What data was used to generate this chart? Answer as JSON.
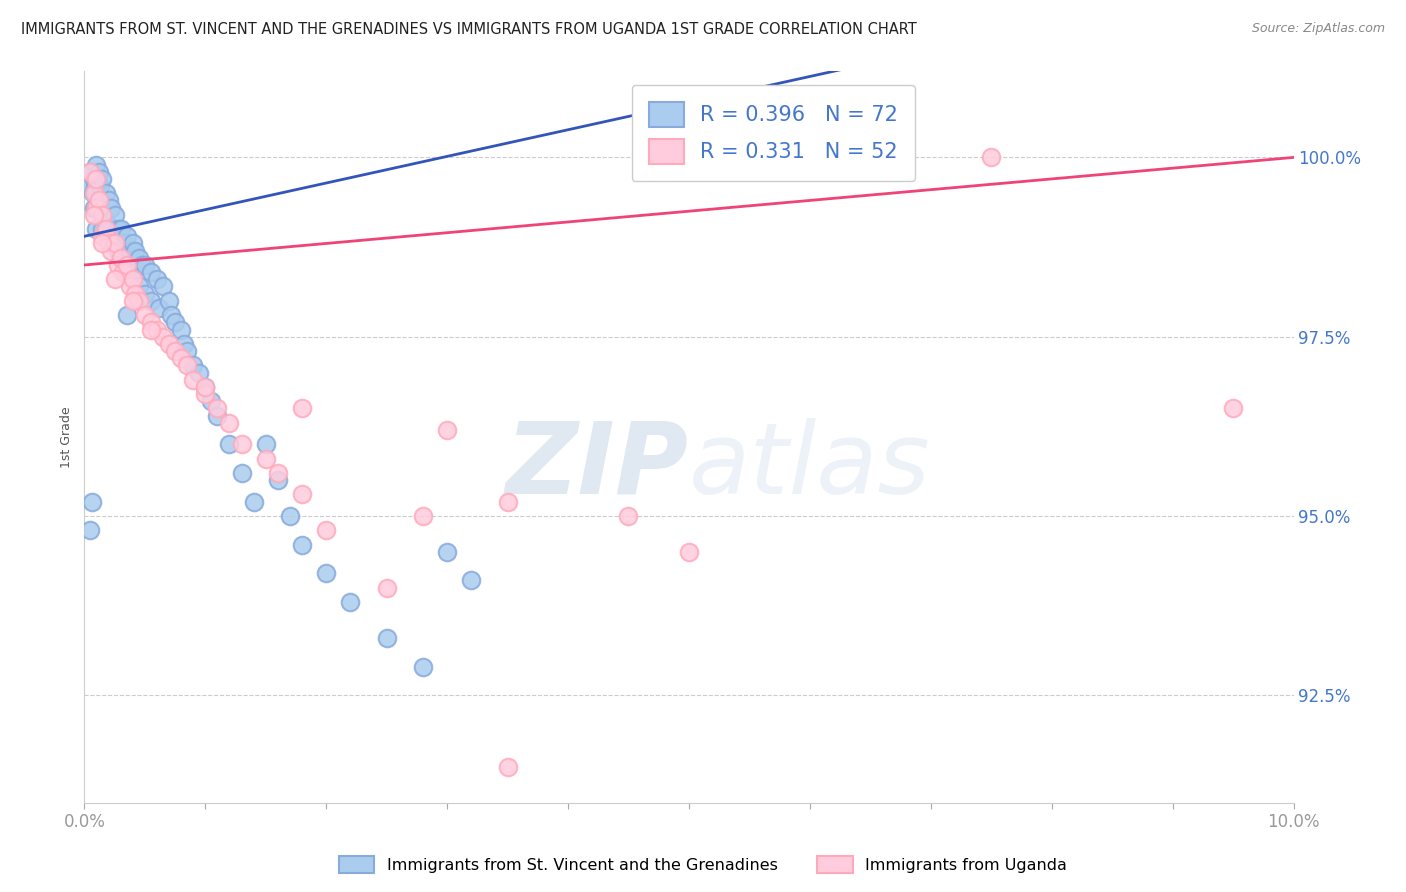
{
  "title": "IMMIGRANTS FROM ST. VINCENT AND THE GRENADINES VS IMMIGRANTS FROM UGANDA 1ST GRADE CORRELATION CHART",
  "source": "Source: ZipAtlas.com",
  "ylabel": "1st Grade",
  "xlim": [
    0.0,
    10.0
  ],
  "ylim": [
    91.0,
    101.2
  ],
  "ytick_vals": [
    92.5,
    95.0,
    97.5,
    100.0
  ],
  "ytick_labels": [
    "92.5%",
    "95.0%",
    "97.5%",
    "100.0%"
  ],
  "xtick_vals": [
    0.0,
    1.0,
    2.0,
    3.0,
    4.0,
    5.0,
    6.0,
    7.0,
    8.0,
    9.0,
    10.0
  ],
  "xtick_edge_labels": [
    "0.0%",
    "10.0%"
  ],
  "blue_color": "#88AADD",
  "pink_color": "#FFAABB",
  "blue_fill": "#AACCEE",
  "pink_fill": "#FFCCDD",
  "blue_line_color": "#3355BB",
  "pink_line_color": "#EE4477",
  "R_blue": 0.396,
  "N_blue": 72,
  "R_pink": 0.331,
  "N_pink": 52,
  "legend_label_blue": "Immigrants from St. Vincent and the Grenadines",
  "legend_label_pink": "Immigrants from Uganda",
  "watermark_zip": "ZIP",
  "watermark_atlas": "atlas",
  "background_color": "#ffffff",
  "grid_color": "#cccccc",
  "ytick_color": "#4477CC",
  "xtick_color": "#999999",
  "title_color": "#222222",
  "source_color": "#888888",
  "ylabel_color": "#555555",
  "spine_color": "#cccccc",
  "legend_edge_color": "#cccccc",
  "blue_x": [
    0.05,
    0.05,
    0.07,
    0.08,
    0.08,
    0.09,
    0.1,
    0.1,
    0.1,
    0.1,
    0.12,
    0.12,
    0.13,
    0.15,
    0.15,
    0.15,
    0.18,
    0.18,
    0.2,
    0.2,
    0.22,
    0.22,
    0.25,
    0.25,
    0.28,
    0.28,
    0.3,
    0.3,
    0.32,
    0.35,
    0.35,
    0.38,
    0.4,
    0.4,
    0.42,
    0.45,
    0.45,
    0.48,
    0.5,
    0.5,
    0.55,
    0.55,
    0.6,
    0.62,
    0.65,
    0.7,
    0.72,
    0.75,
    0.8,
    0.82,
    0.85,
    0.9,
    0.95,
    1.0,
    1.05,
    1.1,
    1.2,
    1.3,
    1.4,
    1.5,
    1.6,
    1.7,
    1.8,
    2.0,
    2.2,
    2.5,
    2.8,
    3.0,
    3.2,
    0.05,
    0.06,
    0.35
  ],
  "blue_y": [
    99.8,
    99.6,
    99.5,
    99.7,
    99.3,
    99.6,
    99.9,
    99.5,
    99.3,
    99.0,
    99.8,
    99.4,
    99.6,
    99.7,
    99.2,
    99.0,
    99.5,
    99.1,
    99.4,
    99.0,
    99.3,
    98.9,
    99.2,
    98.8,
    99.0,
    98.7,
    99.0,
    98.6,
    98.8,
    98.9,
    98.5,
    98.7,
    98.8,
    98.4,
    98.7,
    98.6,
    98.2,
    98.5,
    98.5,
    98.1,
    98.4,
    98.0,
    98.3,
    97.9,
    98.2,
    98.0,
    97.8,
    97.7,
    97.6,
    97.4,
    97.3,
    97.1,
    97.0,
    96.8,
    96.6,
    96.4,
    96.0,
    95.6,
    95.2,
    96.0,
    95.5,
    95.0,
    94.6,
    94.2,
    93.8,
    93.3,
    92.9,
    94.5,
    94.1,
    94.8,
    95.2,
    97.8
  ],
  "pink_x": [
    0.05,
    0.08,
    0.1,
    0.1,
    0.12,
    0.15,
    0.15,
    0.18,
    0.2,
    0.22,
    0.25,
    0.28,
    0.3,
    0.32,
    0.35,
    0.38,
    0.4,
    0.42,
    0.45,
    0.5,
    0.55,
    0.6,
    0.65,
    0.7,
    0.75,
    0.8,
    0.85,
    0.9,
    1.0,
    1.1,
    1.2,
    1.3,
    1.5,
    1.6,
    1.8,
    2.0,
    2.5,
    2.8,
    3.0,
    3.5,
    4.5,
    5.0,
    7.5,
    9.5,
    0.08,
    0.15,
    0.25,
    0.4,
    0.55,
    1.0,
    1.8,
    3.5
  ],
  "pink_y": [
    99.8,
    99.5,
    99.7,
    99.3,
    99.4,
    99.2,
    98.9,
    99.0,
    98.8,
    98.7,
    98.8,
    98.5,
    98.6,
    98.4,
    98.5,
    98.2,
    98.3,
    98.1,
    98.0,
    97.8,
    97.7,
    97.6,
    97.5,
    97.4,
    97.3,
    97.2,
    97.1,
    96.9,
    96.7,
    96.5,
    96.3,
    96.0,
    95.8,
    95.6,
    95.3,
    94.8,
    94.0,
    95.0,
    96.2,
    95.2,
    95.0,
    94.5,
    100.0,
    96.5,
    99.2,
    98.8,
    98.3,
    98.0,
    97.6,
    96.8,
    96.5,
    91.5
  ]
}
